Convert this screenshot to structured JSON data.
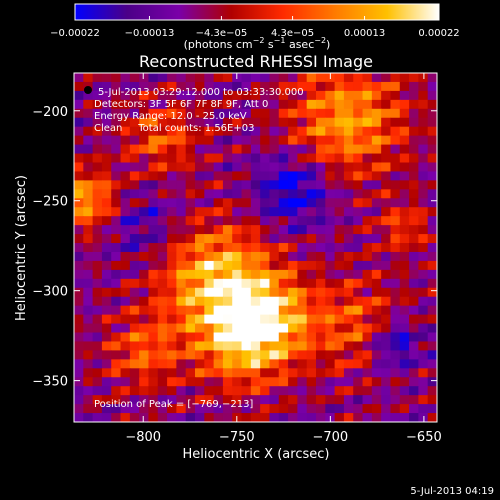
{
  "chart_data": {
    "type": "heatmap",
    "title": "Reconstructed RHESSI Image",
    "xlabel": "Heliocentric X (arcsec)",
    "ylabel": "Heliocentric Y (arcsec)",
    "xlim": [
      -837,
      -643
    ],
    "ylim": [
      -373,
      -179
    ],
    "x_ticks": [
      -800,
      -750,
      -700,
      -650
    ],
    "x_tick_labels": [
      "−800",
      "−750",
      "−700",
      "−650"
    ],
    "y_ticks": [
      -200,
      -250,
      -300,
      -350
    ],
    "y_tick_labels": [
      "−200",
      "−250",
      "−300",
      "−350"
    ],
    "colorbar": {
      "min": -0.00022,
      "max": 0.00022,
      "tick_values": [
        -0.00022,
        -0.00013,
        -4.3e-05,
        4.3e-05,
        0.00013,
        0.00022
      ],
      "tick_labels": [
        "−0.00022",
        "−0.00013",
        "−4.3e−05",
        "4.3e−05",
        "0.00013",
        "0.00022"
      ],
      "units_text": "(photons cm",
      "units_exp1": "−2",
      "units_mid": " s",
      "units_exp2": "−1",
      "units_end": " asec",
      "units_exp3": "−2",
      "units_close": ")",
      "colormap": [
        "#0000ff",
        "#4b0088",
        "#7a00a8",
        "#b00000",
        "#ff2a00",
        "#ff7a00",
        "#ffc000",
        "#ffffff"
      ]
    },
    "info_lines": [
      "5-Jul-2013 03:29:12.000 to 03:33:30.000",
      "Detectors: 3F 5F 6F 7F 8F 9F, Att 0",
      "Energy Range: 12.0 - 25.0 keV",
      "Clean     Total counts: 1.56E+03"
    ],
    "peak_text": "Position of Peak = [−769,−213]",
    "peak": [
      -769,
      -213
    ],
    "footer_timestamp": "5-Jul-2013 04:19",
    "grid": false
  }
}
